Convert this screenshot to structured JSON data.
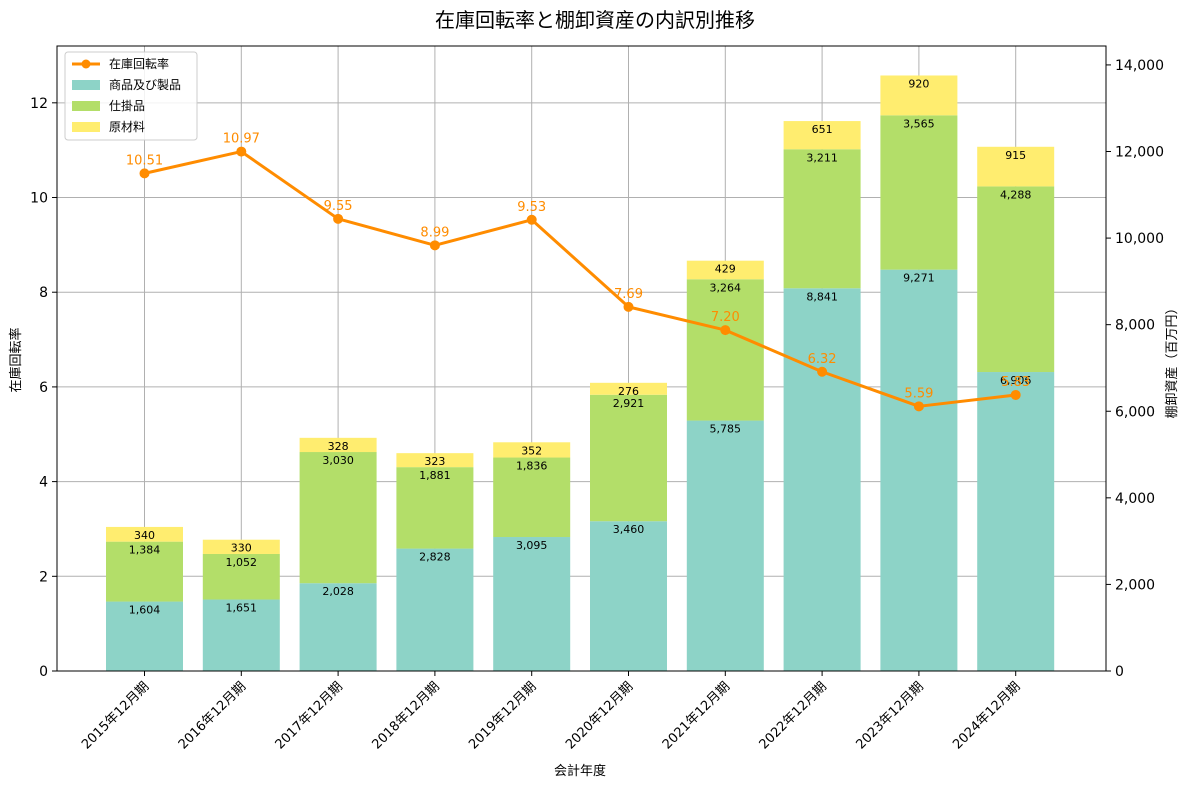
{
  "chart_data": {
    "type": "bar",
    "title": "在庫回転率と棚卸資産の内訳別推移",
    "xlabel": "会計年度",
    "ylabel_left": "在庫回転率",
    "ylabel_right": "棚卸資産（百万円）",
    "categories": [
      "2015年12月期",
      "2016年12月期",
      "2017年12月期",
      "2018年12月期",
      "2019年12月期",
      "2020年12月期",
      "2021年12月期",
      "2022年12月期",
      "2023年12月期",
      "2024年12月期"
    ],
    "series": [
      {
        "name": "商品及び製品",
        "type": "stacked-bar",
        "axis": "right",
        "color": "#8dd3c7",
        "values": [
          1604,
          1651,
          2028,
          2828,
          3095,
          3460,
          5785,
          8841,
          9271,
          6906
        ],
        "labels": [
          "1,604",
          "1,651",
          "2,028",
          "2,828",
          "3,095",
          "3,460",
          "5,785",
          "8,841",
          "9,271",
          "6,906"
        ]
      },
      {
        "name": "仕掛品",
        "type": "stacked-bar",
        "axis": "right",
        "color": "#b3de69",
        "values": [
          1384,
          1052,
          3030,
          1881,
          1836,
          2921,
          3264,
          3211,
          3565,
          4288
        ],
        "labels": [
          "1,384",
          "1,052",
          "3,030",
          "1,881",
          "1,836",
          "2,921",
          "3,264",
          "3,211",
          "3,565",
          "4,288"
        ]
      },
      {
        "name": "原材料",
        "type": "stacked-bar",
        "axis": "right",
        "color": "#ffed6f",
        "values": [
          340,
          330,
          328,
          323,
          352,
          276,
          429,
          651,
          920,
          915
        ],
        "labels": [
          "340",
          "330",
          "328",
          "323",
          "352",
          "276",
          "429",
          "651",
          "920",
          "915"
        ]
      },
      {
        "name": "在庫回転率",
        "type": "line",
        "axis": "left",
        "color": "#ff8c00",
        "values": [
          10.51,
          10.97,
          9.55,
          8.99,
          9.53,
          7.69,
          7.2,
          6.32,
          5.59,
          5.83
        ],
        "labels": [
          "10.51",
          "10.97",
          "9.55",
          "8.99",
          "9.53",
          "7.69",
          "7.20",
          "6.32",
          "5.59",
          "5.83"
        ]
      }
    ],
    "ylim_left": [
      0,
      13.2
    ],
    "yticks_left": [
      0,
      2,
      4,
      6,
      8,
      10,
      12
    ],
    "ylim_right": [
      0,
      14437
    ],
    "yticks_right": [
      0,
      2000,
      4000,
      6000,
      8000,
      10000,
      12000,
      14000
    ],
    "yticks_right_labels": [
      "0",
      "2,000",
      "4,000",
      "6,000",
      "8,000",
      "10,000",
      "12,000",
      "14,000"
    ],
    "legend_order": [
      "在庫回転率",
      "商品及び製品",
      "仕掛品",
      "原材料"
    ],
    "grid": true,
    "legend_position": "top-left"
  }
}
